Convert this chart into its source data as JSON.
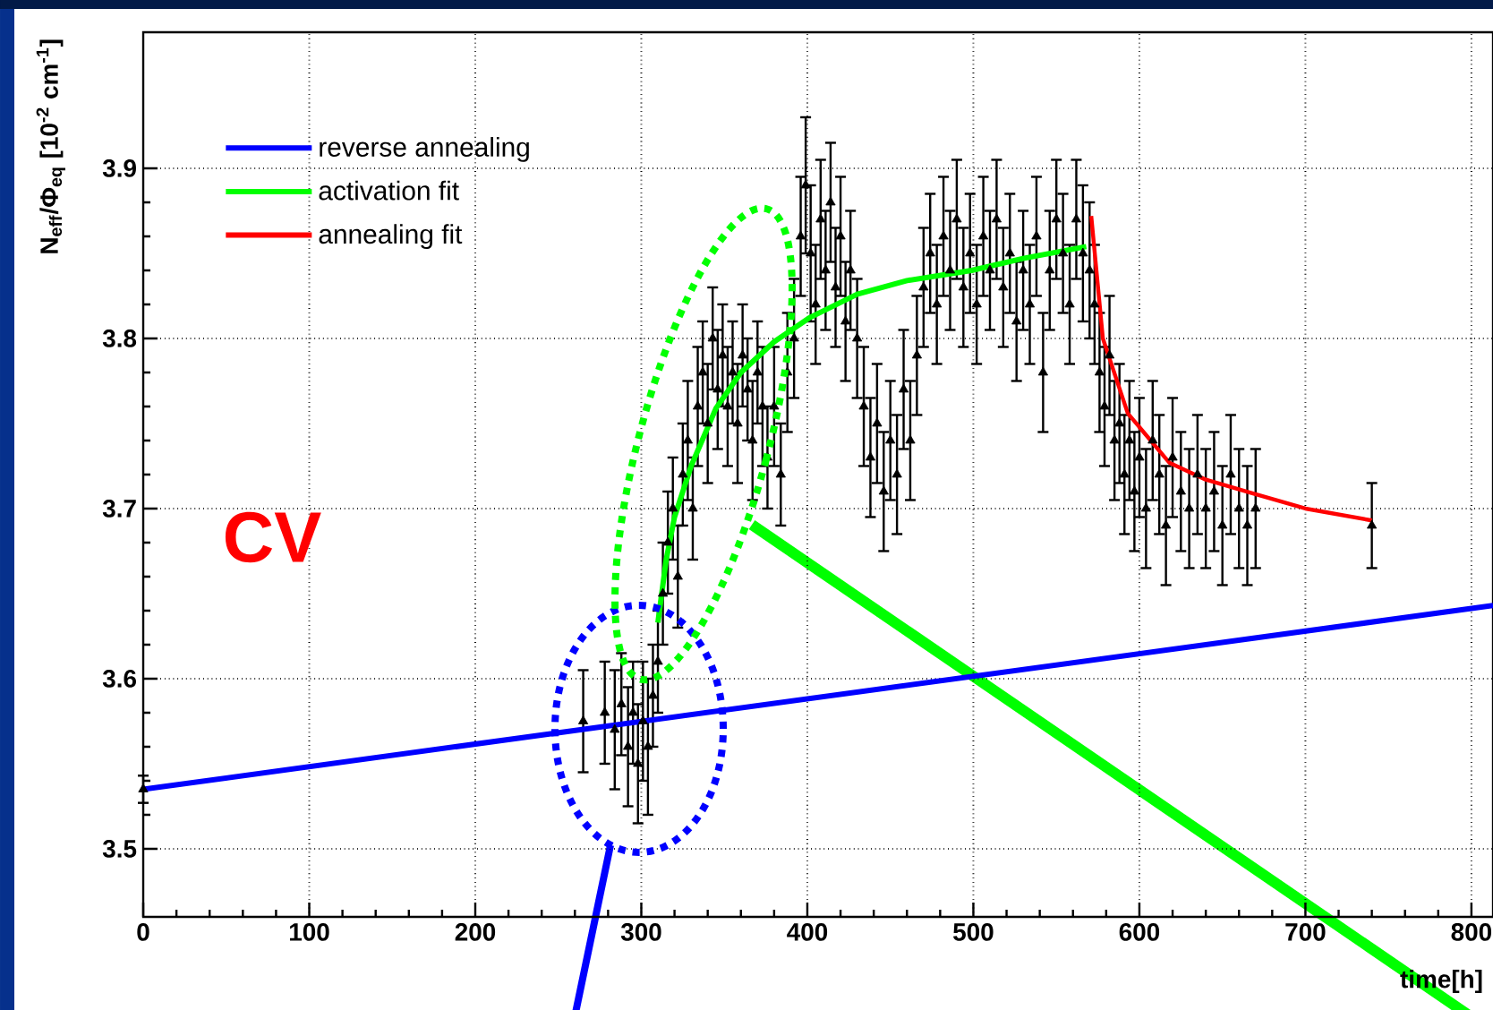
{
  "chart_data": {
    "type": "scatter",
    "ylabel": "N$_{eff}$/Φ$_{eq}$ [10$^{-2}$ cm$^{-1}$]",
    "xlabel": "time[h]",
    "xlim": [
      0,
      813
    ],
    "ylim": [
      3.46,
      3.98
    ],
    "xticks": [
      0,
      100,
      200,
      300,
      400,
      500,
      600,
      700,
      800
    ],
    "yticks": [
      3.5,
      3.6,
      3.7,
      3.8,
      3.9
    ],
    "grid": true,
    "legend": "top left",
    "annotations": [
      "CV"
    ],
    "series": [
      {
        "color": "#000000",
        "marker": "triangle",
        "x": [
          0,
          265,
          278,
          284,
          288,
          292,
          295,
          298,
          301,
          304,
          307,
          310,
          313,
          316,
          319,
          322,
          325,
          328,
          331,
          334,
          337,
          340,
          343,
          346,
          349,
          352,
          355,
          358,
          361,
          364,
          367,
          370,
          373,
          376,
          380,
          384,
          388,
          392,
          396,
          399,
          402,
          405,
          408,
          411,
          414,
          417,
          420,
          423,
          426,
          430,
          434,
          438,
          442,
          446,
          450,
          454,
          458,
          462,
          466,
          470,
          474,
          478,
          482,
          486,
          490,
          494,
          498,
          502,
          506,
          510,
          514,
          518,
          522,
          526,
          530,
          534,
          538,
          542,
          546,
          550,
          554,
          558,
          562,
          566,
          570,
          573,
          576,
          579,
          582,
          585,
          588,
          591,
          594,
          597,
          600,
          604,
          608,
          612,
          616,
          620,
          625,
          630,
          635,
          640,
          645,
          650,
          655,
          660,
          665,
          670,
          740
        ],
        "values": [
          3.535,
          3.575,
          3.58,
          3.57,
          3.585,
          3.56,
          3.58,
          3.55,
          3.575,
          3.56,
          3.59,
          3.61,
          3.65,
          3.68,
          3.7,
          3.66,
          3.72,
          3.74,
          3.7,
          3.76,
          3.78,
          3.75,
          3.8,
          3.77,
          3.79,
          3.76,
          3.78,
          3.75,
          3.79,
          3.77,
          3.74,
          3.78,
          3.76,
          3.73,
          3.76,
          3.72,
          3.78,
          3.8,
          3.86,
          3.89,
          3.85,
          3.82,
          3.87,
          3.84,
          3.88,
          3.83,
          3.86,
          3.81,
          3.84,
          3.8,
          3.76,
          3.73,
          3.75,
          3.71,
          3.74,
          3.72,
          3.77,
          3.74,
          3.79,
          3.83,
          3.85,
          3.82,
          3.86,
          3.84,
          3.87,
          3.83,
          3.85,
          3.82,
          3.86,
          3.84,
          3.87,
          3.83,
          3.85,
          3.81,
          3.84,
          3.82,
          3.86,
          3.78,
          3.84,
          3.87,
          3.85,
          3.82,
          3.87,
          3.85,
          3.84,
          3.82,
          3.78,
          3.76,
          3.79,
          3.74,
          3.75,
          3.72,
          3.74,
          3.71,
          3.73,
          3.7,
          3.74,
          3.72,
          3.69,
          3.73,
          3.71,
          3.7,
          3.72,
          3.7,
          3.71,
          3.69,
          3.72,
          3.7,
          3.69,
          3.7,
          3.69
        ],
        "errors": [
          0.008,
          0.03,
          0.03,
          0.035,
          0.03,
          0.035,
          0.03,
          0.035,
          0.035,
          0.04,
          0.03,
          0.03,
          0.03,
          0.03,
          0.03,
          0.03,
          0.03,
          0.035,
          0.03,
          0.035,
          0.03,
          0.035,
          0.03,
          0.035,
          0.03,
          0.035,
          0.03,
          0.035,
          0.03,
          0.03,
          0.035,
          0.03,
          0.035,
          0.03,
          0.035,
          0.03,
          0.035,
          0.035,
          0.035,
          0.04,
          0.04,
          0.035,
          0.035,
          0.035,
          0.035,
          0.035,
          0.035,
          0.035,
          0.035,
          0.035,
          0.035,
          0.035,
          0.035,
          0.035,
          0.035,
          0.035,
          0.035,
          0.035,
          0.035,
          0.035,
          0.035,
          0.035,
          0.035,
          0.035,
          0.035,
          0.035,
          0.035,
          0.035,
          0.035,
          0.035,
          0.035,
          0.035,
          0.035,
          0.035,
          0.035,
          0.035,
          0.035,
          0.035,
          0.035,
          0.035,
          0.035,
          0.035,
          0.035,
          0.04,
          0.04,
          0.035,
          0.035,
          0.035,
          0.035,
          0.035,
          0.035,
          0.035,
          0.035,
          0.035,
          0.035,
          0.035,
          0.035,
          0.035,
          0.035,
          0.035,
          0.035,
          0.035,
          0.035,
          0.035,
          0.035,
          0.035,
          0.035,
          0.035,
          0.035,
          0.035,
          0.025
        ]
      },
      {
        "name": "reverse annealing",
        "type": "line",
        "color": "#0000ff",
        "x": [
          0,
          813
        ],
        "values": [
          3.535,
          3.643
        ]
      },
      {
        "name": "activation fit",
        "type": "line",
        "color": "#00ff00",
        "x": [
          310,
          315,
          320,
          330,
          345,
          360,
          380,
          401,
          430,
          460,
          499,
          530,
          568
        ],
        "values": [
          3.633,
          3.67,
          3.695,
          3.725,
          3.759,
          3.78,
          3.798,
          3.812,
          3.826,
          3.834,
          3.84,
          3.847,
          3.854
        ]
      },
      {
        "name": "annealing fit",
        "type": "line",
        "color": "#ff0000",
        "x": [
          571,
          578,
          593,
          618,
          640,
          668,
          700,
          740
        ],
        "values": [
          3.872,
          3.8,
          3.756,
          3.727,
          3.717,
          3.709,
          3.7,
          3.693
        ]
      }
    ]
  }
}
